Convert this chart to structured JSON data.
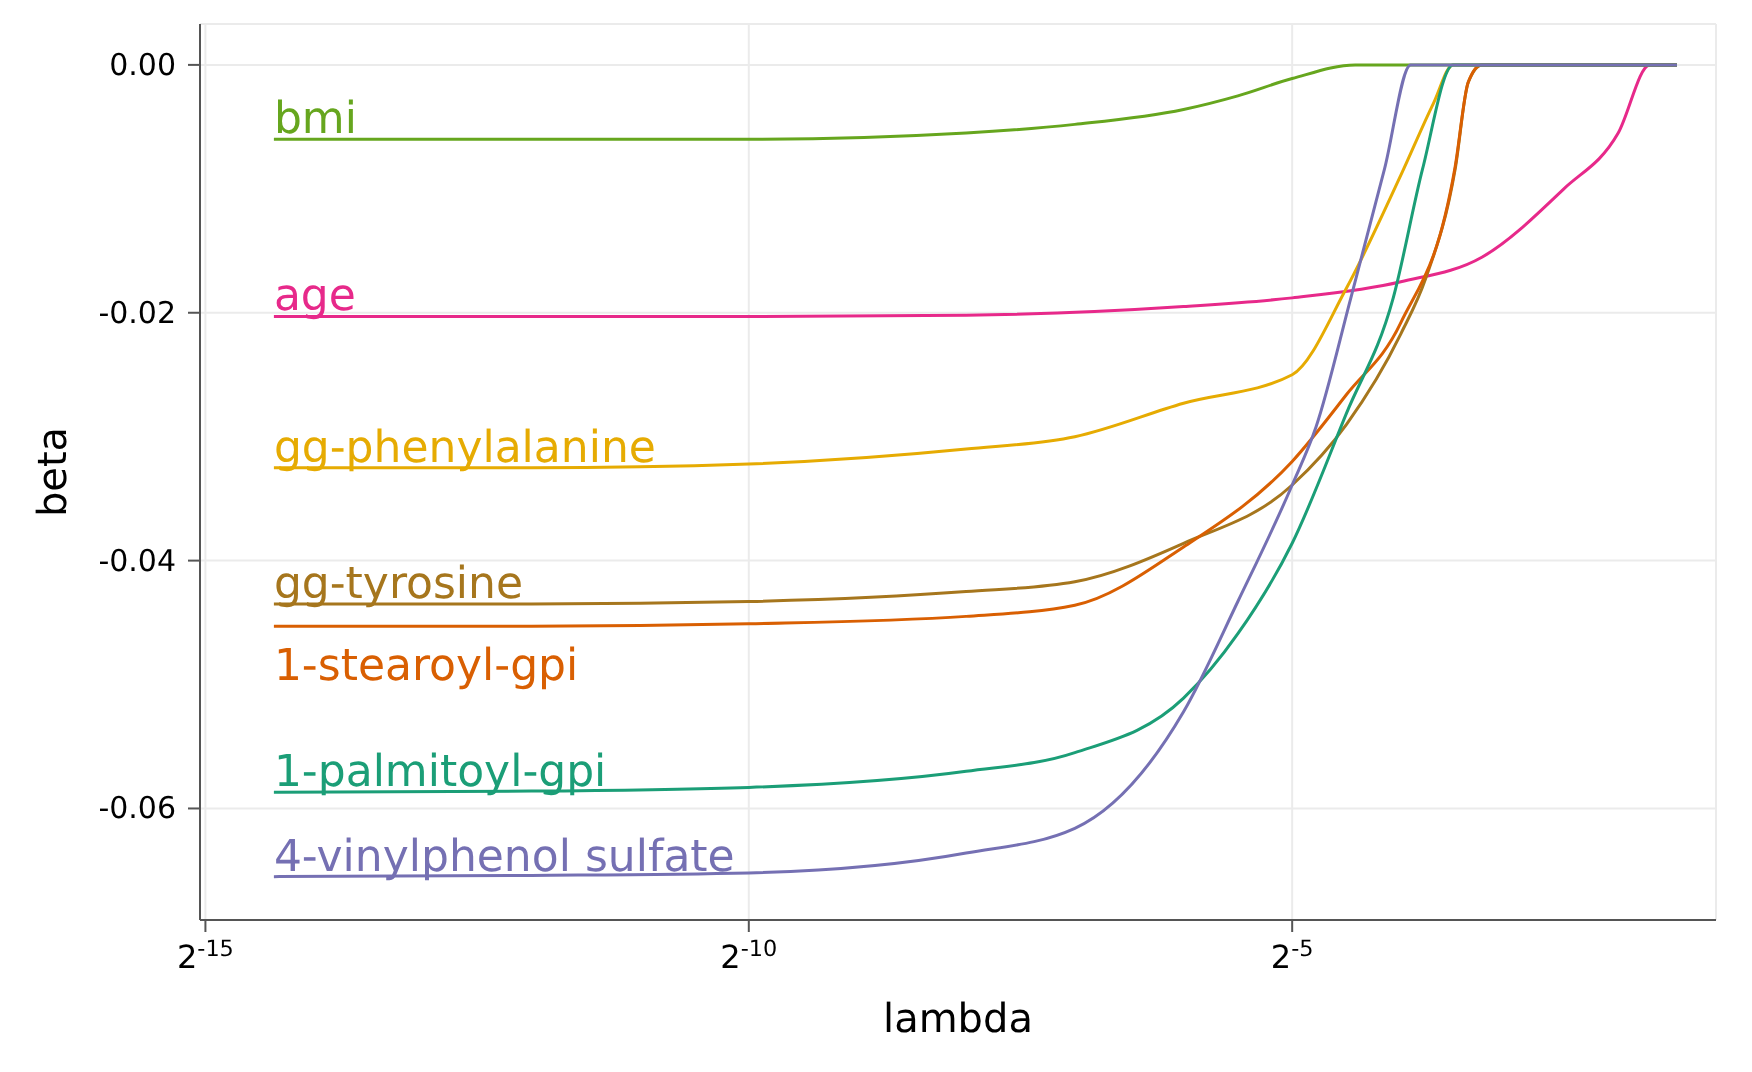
{
  "chart_data": {
    "type": "line",
    "xlabel": "lambda",
    "ylabel": "beta",
    "log": "x",
    "xlim": [
      2.948e-05,
      0.4665
    ],
    "ylim": [
      -0.069,
      0.0033
    ],
    "xticks": [
      {
        "value": 3.0517578125e-05,
        "label": "2$^{-15}$"
      },
      {
        "value": 0.0009765625,
        "label": "2$^{-10}$"
      },
      {
        "value": 0.03125,
        "label": "2$^{-5}$"
      }
    ],
    "yticks": [
      {
        "value": 0,
        "label": "0.00"
      },
      {
        "value": -0.02,
        "label": "-0.02"
      },
      {
        "value": -0.04,
        "label": "-0.04"
      },
      {
        "value": -0.06,
        "label": "-0.06"
      }
    ],
    "grid": true,
    "marker": "none",
    "line_style": "solid",
    "series": [
      {
        "name": "bmi",
        "color": "#66a61e",
        "x": [
          4.723e-05,
          0.0002441,
          0.0009766,
          0.003906,
          0.007813,
          0.01563,
          0.0221,
          0.03125,
          0.04671,
          0.3635
        ],
        "values": [
          -0.006,
          -0.006,
          -0.006,
          -0.0055,
          -0.0048,
          -0.0036,
          -0.0025,
          -0.0011,
          0,
          0
        ]
      },
      {
        "name": "age",
        "color": "#e7298a",
        "x": [
          4.723e-05,
          0.0002441,
          0.0009766,
          0.003906,
          0.01563,
          0.03125,
          0.0625,
          0.1051,
          0.1768,
          0.25,
          0.3057,
          0.3635
        ],
        "values": [
          -0.0203,
          -0.0203,
          -0.0203,
          -0.0202,
          -0.0195,
          -0.0188,
          -0.0175,
          -0.0155,
          -0.01,
          -0.0055,
          0,
          0
        ]
      },
      {
        "name": "gg-phenylalanine",
        "color": "#e6ab02",
        "x": [
          4.723e-05,
          0.0002441,
          0.0009766,
          0.003906,
          0.007813,
          0.01563,
          0.03125,
          0.0442,
          0.0625,
          0.07694,
          0.08717,
          0.3635
        ],
        "values": [
          -0.0325,
          -0.0325,
          -0.0322,
          -0.031,
          -0.03,
          -0.0273,
          -0.025,
          -0.018,
          -0.0089,
          -0.0031,
          0,
          0
        ]
      },
      {
        "name": "gg-tyrosine",
        "color": "#a6761d",
        "x": [
          4.723e-05,
          0.0002441,
          0.0009766,
          0.003906,
          0.007813,
          0.01563,
          0.03125,
          0.0442,
          0.0625,
          0.0733,
          0.08839,
          0.09606,
          0.1051,
          0.3635
        ],
        "values": [
          -0.0435,
          -0.0435,
          -0.0433,
          -0.0425,
          -0.0417,
          -0.0386,
          -0.0339,
          -0.029,
          -0.0217,
          -0.0172,
          -0.0084,
          -0.0014,
          0,
          0
        ]
      },
      {
        "name": "1-stearoyl-gpi",
        "color": "#d95f02",
        "x": [
          4.723e-05,
          0.0002441,
          0.0009766,
          0.003906,
          0.007813,
          0.01563,
          0.03125,
          0.0442,
          0.0625,
          0.08839,
          0.09606,
          0.1044,
          0.3635
        ],
        "values": [
          -0.0453,
          -0.0453,
          -0.0451,
          -0.0445,
          -0.0436,
          -0.0389,
          -0.032,
          -0.0266,
          -0.0208,
          -0.0082,
          -0.0014,
          0,
          0
        ]
      },
      {
        "name": "1-palmitoyl-gpi",
        "color": "#1b9e77",
        "x": [
          4.723e-05,
          0.0002441,
          0.0009766,
          0.003906,
          0.007813,
          0.01563,
          0.0221,
          0.03125,
          0.0442,
          0.05954,
          0.07179,
          0.08717,
          0.3635
        ],
        "values": [
          -0.0587,
          -0.0586,
          -0.0583,
          -0.057,
          -0.0555,
          -0.0511,
          -0.0459,
          -0.0386,
          -0.0281,
          -0.0188,
          -0.0084,
          0,
          0
        ]
      },
      {
        "name": "4-vinylphenol sulfate",
        "color": "#7570b3",
        "x": [
          4.723e-05,
          0.0002441,
          0.0009766,
          0.003906,
          0.007813,
          0.01563,
          0.0221,
          0.03125,
          0.0364,
          0.04544,
          0.05632,
          0.06652,
          0.3635
        ],
        "values": [
          -0.0655,
          -0.0654,
          -0.0652,
          -0.0636,
          -0.0616,
          -0.0522,
          -0.0433,
          -0.0339,
          -0.0292,
          -0.0188,
          -0.0084,
          0,
          0
        ]
      }
    ]
  }
}
